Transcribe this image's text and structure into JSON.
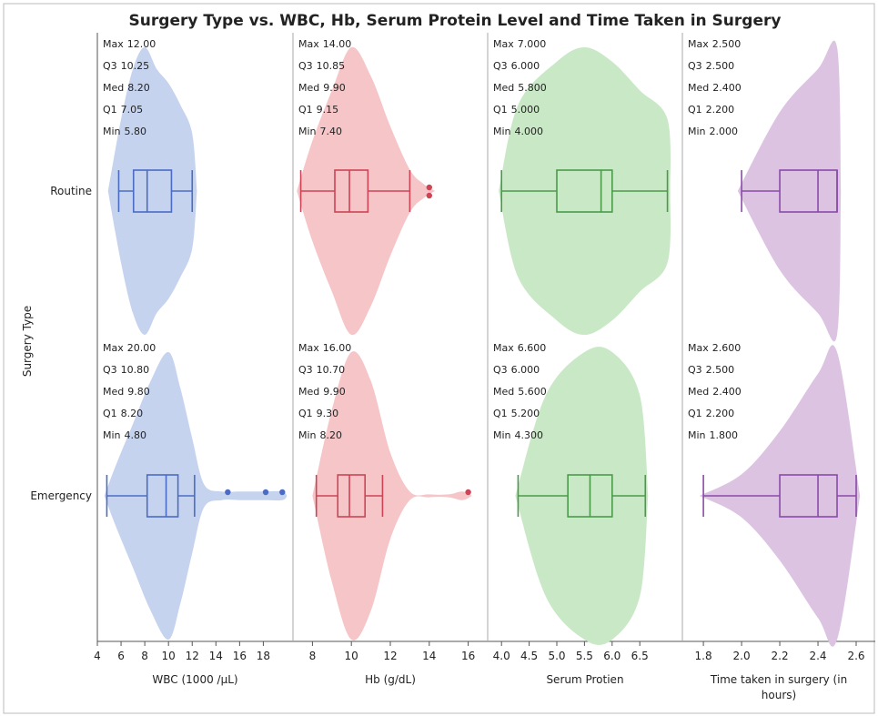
{
  "chart_data": {
    "type": "violin",
    "title": "Surgery Type vs. WBC, Hb, Serum Protein Level and Time Taken in Surgery",
    "ylabel": "Surgery Type",
    "categories": [
      "Routine",
      "Emergency"
    ],
    "stat_labels": [
      "Max",
      "Q3",
      "Med",
      "Q1",
      "Min"
    ],
    "panels": [
      {
        "xlabel": "WBC (1000 /µL)",
        "color": "#4a6cc4",
        "fill": "#c6d3ee",
        "xlim": [
          4,
          20.5
        ],
        "xticks": [
          4,
          6,
          8,
          10,
          12,
          14,
          16,
          18
        ],
        "groups": [
          {
            "values": [
              12,
              10.25,
              8.2,
              7.05,
              5.8
            ],
            "value_labels": [
              "12.00",
              "10.25",
              "8.20",
              "7.05",
              "5.80"
            ],
            "outliers": [],
            "density_x": [
              4.9,
              6,
              7,
              8,
              9,
              10,
              11,
              12,
              12.4
            ],
            "density": [
              0,
              0.5,
              0.85,
              1,
              0.85,
              0.75,
              0.6,
              0.4,
              0
            ]
          },
          {
            "values": [
              20,
              10.8,
              9.8,
              8.2,
              4.8
            ],
            "value_labels": [
              "20.00",
              "10.80",
              "9.80",
              "8.20",
              "4.80"
            ],
            "whisker_high": 12.2,
            "outliers": [
              15,
              18.2,
              19.6
            ],
            "density_x": [
              4.6,
              5.5,
              7,
              8.5,
              10,
              11,
              12,
              13,
              14.5,
              16,
              18,
              19.6,
              20
            ],
            "density": [
              0,
              0.2,
              0.5,
              0.8,
              1,
              0.75,
              0.4,
              0.08,
              0.03,
              0.03,
              0.03,
              0.03,
              0
            ]
          }
        ]
      },
      {
        "xlabel": "Hb (g/dL)",
        "color": "#cc4455",
        "fill": "#f5c5c8",
        "xlim": [
          7,
          17
        ],
        "xticks": [
          8,
          10,
          12,
          14,
          16
        ],
        "groups": [
          {
            "values": [
              14,
              10.85,
              9.9,
              9.15,
              7.4
            ],
            "value_labels": [
              "14.00",
              "10.85",
              "9.90",
              "9.15",
              "7.40"
            ],
            "whisker_high": 13,
            "outliers": [
              14,
              14
            ],
            "density_x": [
              7.2,
              8,
              9,
              10,
              11,
              12,
              13,
              13.7,
              14.3
            ],
            "density": [
              0,
              0.35,
              0.7,
              1,
              0.8,
              0.45,
              0.15,
              0.05,
              0
            ]
          },
          {
            "values": [
              16,
              10.7,
              9.9,
              9.3,
              8.2
            ],
            "value_labels": [
              "16.00",
              "10.70",
              "9.90",
              "9.30",
              "8.20"
            ],
            "whisker_high": 11.6,
            "outliers": [
              16
            ],
            "density_x": [
              8,
              9,
              10,
              11,
              12,
              13,
              14,
              15,
              15.7,
              16.2
            ],
            "density": [
              0,
              0.6,
              1,
              0.8,
              0.3,
              0.03,
              0.01,
              0.01,
              0.03,
              0
            ]
          }
        ]
      },
      {
        "xlabel": "Serum Protien",
        "color": "#4a9a4a",
        "fill": "#c9e8c6",
        "xlim": [
          3.75,
          7.27
        ],
        "xticks": [
          {
            "value": 4,
            "label": "4.0"
          },
          4.5,
          {
            "value": 5,
            "label": "5.0"
          },
          5.5,
          {
            "value": 6,
            "label": "6.0"
          },
          6.5
        ],
        "groups": [
          {
            "values": [
              7,
              6,
              5.8,
              5,
              4
            ],
            "value_labels": [
              "7.000",
              "6.000",
              "5.800",
              "5.000",
              "4.000"
            ],
            "outliers": [],
            "density_x": [
              3.95,
              4.3,
              5,
              5.5,
              6,
              6.5,
              7,
              7.05
            ],
            "density": [
              0,
              0.6,
              0.9,
              1,
              0.9,
              0.7,
              0.5,
              0
            ]
          },
          {
            "values": [
              6.6,
              6,
              5.6,
              5.2,
              4.3
            ],
            "value_labels": [
              "6.600",
              "6.000",
              "5.600",
              "5.200",
              "4.300"
            ],
            "outliers": [],
            "density_x": [
              4.25,
              4.8,
              5.5,
              6,
              6.5,
              6.65
            ],
            "density": [
              0,
              0.7,
              1,
              1,
              0.7,
              0
            ]
          }
        ]
      },
      {
        "xlabel": "Time taken in surgery (in hours)",
        "color": "#8a4aa8",
        "fill": "#dcc3e2",
        "xlim": [
          1.69,
          2.7
        ],
        "xticks": [
          1.8,
          {
            "value": 2,
            "label": "2.0"
          },
          2.2,
          2.4,
          2.6
        ],
        "groups": [
          {
            "values": [
              2.5,
              2.5,
              2.4,
              2.2,
              2
            ],
            "value_labels": [
              "2.500",
              "2.500",
              "2.400",
              "2.200",
              "2.000"
            ],
            "outliers": [],
            "density_x": [
              1.98,
              2.2,
              2.4,
              2.5,
              2.52
            ],
            "density": [
              0,
              0.55,
              0.85,
              1,
              0
            ]
          },
          {
            "values": [
              2.6,
              2.5,
              2.4,
              2.2,
              1.8
            ],
            "value_labels": [
              "2.600",
              "2.500",
              "2.400",
              "2.200",
              "1.800"
            ],
            "outliers": [],
            "density_x": [
              1.78,
              2,
              2.2,
              2.4,
              2.5,
              2.62
            ],
            "density": [
              0,
              0.15,
              0.45,
              0.85,
              1,
              0
            ]
          }
        ]
      }
    ]
  }
}
